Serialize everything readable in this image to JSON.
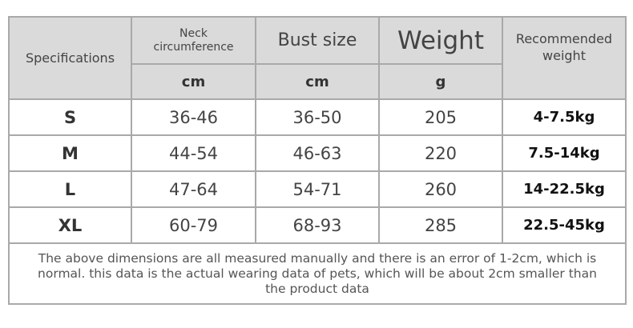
{
  "header": {
    "specifications": "Specifications",
    "neck": "Neck circumference",
    "bust": "Bust size",
    "weight": "Weight",
    "recommended": "Recommended weight",
    "units": {
      "neck": "cm",
      "bust": "cm",
      "weight": "g"
    }
  },
  "rows": [
    {
      "size": "S",
      "neck": "36-46",
      "bust": "36-50",
      "weight": "205",
      "recommended": "4-7.5kg"
    },
    {
      "size": "M",
      "neck": "44-54",
      "bust": "46-63",
      "weight": "220",
      "recommended": "7.5-14kg"
    },
    {
      "size": "L",
      "neck": "47-64",
      "bust": "54-71",
      "weight": "260",
      "recommended": "14-22.5kg"
    },
    {
      "size": "XL",
      "neck": "60-79",
      "bust": "68-93",
      "weight": "285",
      "recommended": "22.5-45kg"
    }
  ],
  "note": "The above dimensions are all measured manually and there is an error of 1-2cm, which is normal. this data is the actual wearing data of pets, which will be about 2cm smaller than the product data",
  "colors": {
    "header_bg": "#dadada",
    "border": "#a9a9a9",
    "text": "#444444"
  }
}
